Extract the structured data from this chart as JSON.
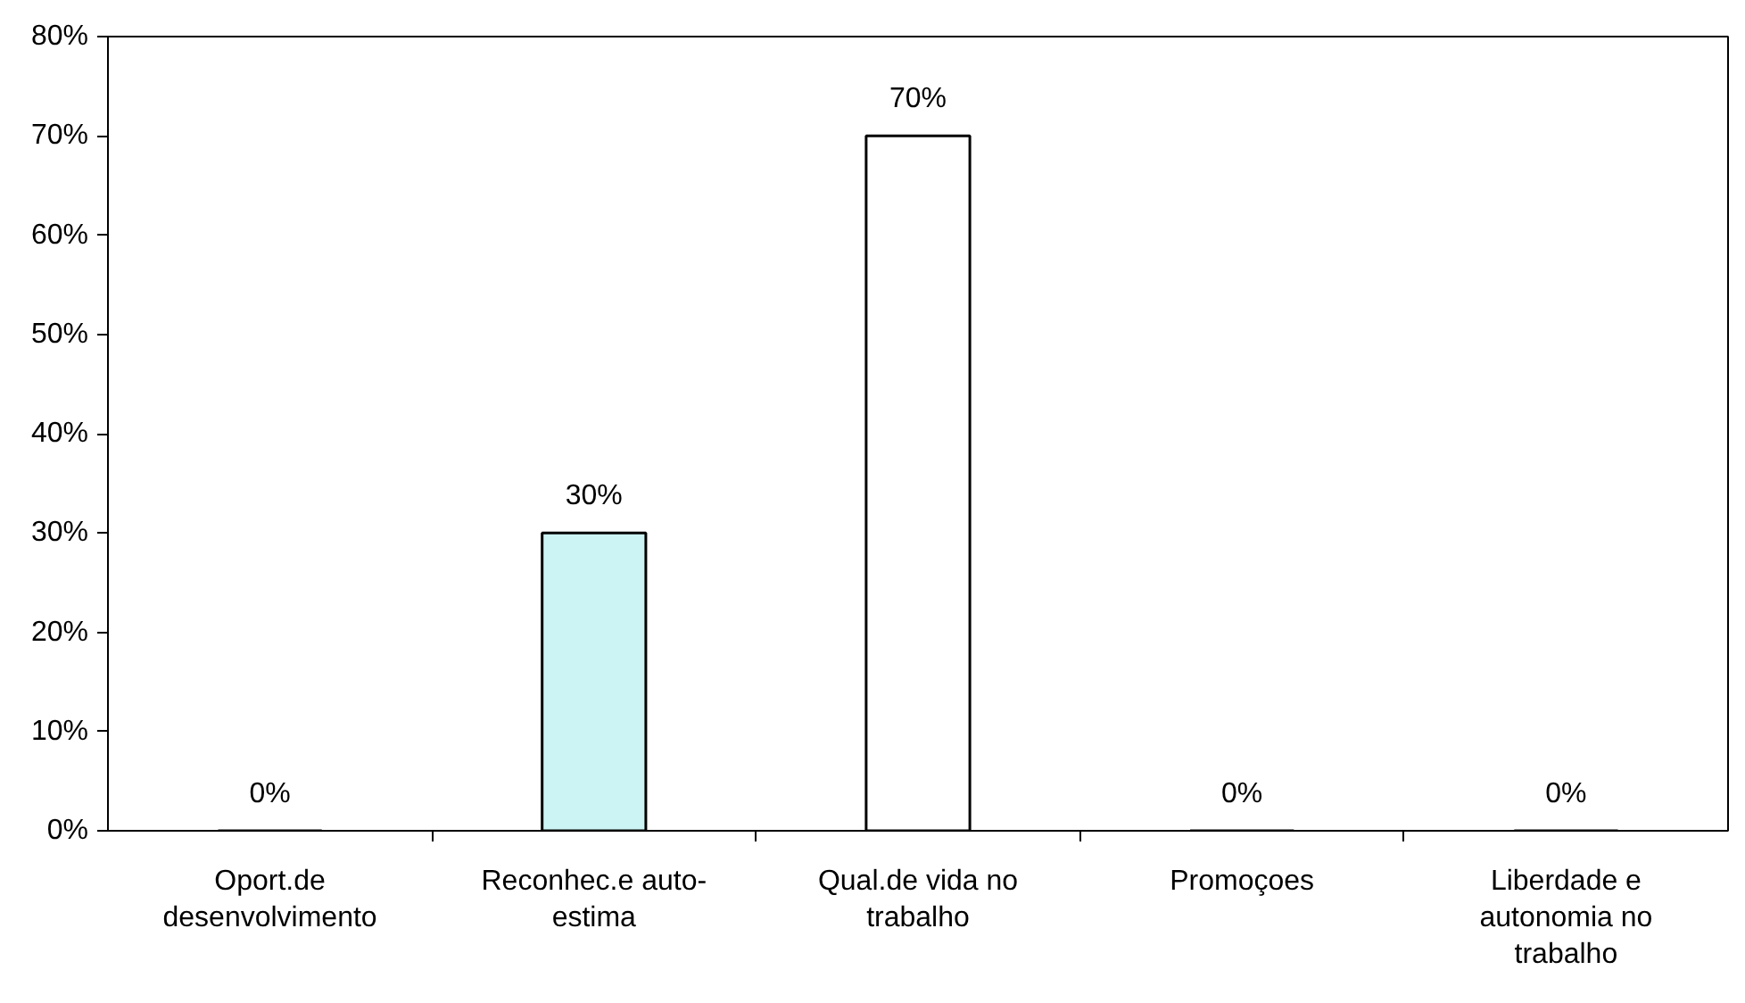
{
  "chart_data": {
    "type": "bar",
    "categories": [
      "Oport.de\ndesenvolvimento",
      "Reconhec.e auto-\nestima",
      "Qual.de vida no\ntrabalho",
      "Promoçoes",
      "Liberdade e\nautonomia no\ntrabalho"
    ],
    "values": [
      0,
      30,
      70,
      0,
      0
    ],
    "colors": [
      "#000000",
      "#ccf4f4",
      "#ffffff",
      "#000000",
      "#000000"
    ],
    "value_labels": [
      "0%",
      "30%",
      "70%",
      "0%",
      "0%"
    ],
    "ylim": [
      0,
      80
    ],
    "yticks": [
      {
        "value": 0,
        "label": "0%"
      },
      {
        "value": 10,
        "label": "10%"
      },
      {
        "value": 20,
        "label": "20%"
      },
      {
        "value": 30,
        "label": "30%"
      },
      {
        "value": 40,
        "label": "40%"
      },
      {
        "value": 50,
        "label": "50%"
      },
      {
        "value": 60,
        "label": "60%"
      },
      {
        "value": 70,
        "label": "70%"
      },
      {
        "value": 80,
        "label": "80%"
      }
    ],
    "grid": false
  }
}
